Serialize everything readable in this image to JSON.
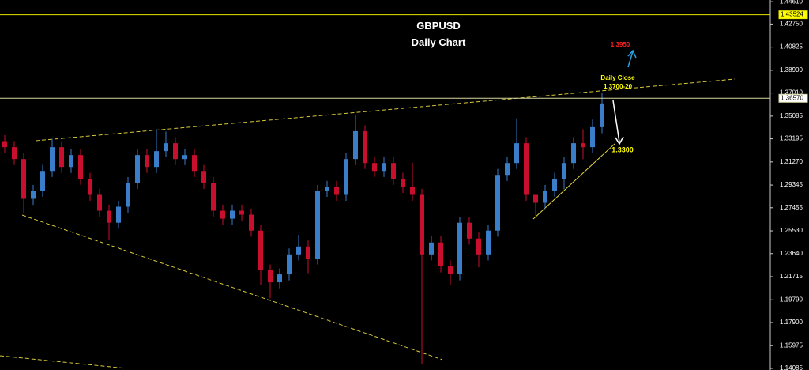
{
  "chart_data": {
    "type": "candlestick",
    "title": "GBPUSD",
    "subtitle": "Daily Chart",
    "up_color": "#3a7dc9",
    "down_color": "#c8102e",
    "ylim": [
      1.1395,
      1.4475
    ],
    "yticks": [
      {
        "value": 1.4461,
        "label": "1.44610"
      },
      {
        "value": 1.4275,
        "label": "1.42750"
      },
      {
        "value": 1.40825,
        "label": "1.40825"
      },
      {
        "value": 1.389,
        "label": "1.38900"
      },
      {
        "value": 1.3701,
        "label": "1.37010"
      },
      {
        "value": 1.35085,
        "label": "1.35085"
      },
      {
        "value": 1.33195,
        "label": "1.33195"
      },
      {
        "value": 1.3127,
        "label": "1.31270"
      },
      {
        "value": 1.29345,
        "label": "1.29345"
      },
      {
        "value": 1.27455,
        "label": "1.27455"
      },
      {
        "value": 1.2553,
        "label": "1.25530"
      },
      {
        "value": 1.2364,
        "label": "1.23640"
      },
      {
        "value": 1.21715,
        "label": "1.21715"
      },
      {
        "value": 1.1979,
        "label": "1.19790"
      },
      {
        "value": 1.179,
        "label": "1.17900"
      },
      {
        "value": 1.15975,
        "label": "1.15975"
      },
      {
        "value": 1.14085,
        "label": "1.14085"
      }
    ],
    "price_lines": [
      {
        "value": 1.43524,
        "label": "1.43524",
        "color": "#e6e600"
      },
      {
        "value": 1.3657,
        "label": "1.36570",
        "color": "#d8d8a0"
      }
    ],
    "annotations": [
      {
        "text": "1.3950",
        "color": "#ff2020"
      },
      {
        "text": "Daily Close",
        "color": "#ffff00"
      },
      {
        "text": "1.3700-20",
        "color": "#ffff00"
      },
      {
        "text": "1.3300",
        "color": "#ffff00"
      }
    ],
    "open": [
      1.33,
      1.325,
      1.3151,
      1.282,
      1.2886,
      1.3052,
      1.325,
      1.3085,
      1.3184,
      1.2986,
      1.2853,
      1.2721,
      1.2621,
      1.2754,
      1.2952,
      1.3184,
      1.3085,
      1.3217,
      1.3283,
      1.3151,
      1.3184,
      1.3052,
      1.2952,
      1.2721,
      1.2655,
      1.2721,
      1.2688,
      1.2555,
      1.2224,
      1.2125,
      1.2191,
      1.2357,
      1.2423,
      1.2323,
      1.2886,
      1.2919,
      1.2853,
      1.3151,
      1.3383,
      1.3118,
      1.3052,
      1.3118,
      1.2986,
      1.2919,
      1.2853,
      1.2357,
      1.2456,
      1.2257,
      1.2191,
      1.2621,
      1.2489,
      1.2357,
      1.2555,
      1.3019,
      1.3118,
      1.3283,
      1.2853,
      1.2787,
      1.2886,
      1.2986,
      1.3118,
      1.3283,
      1.325,
      1.3416
    ],
    "high": [
      1.335,
      1.33,
      1.3201,
      1.2936,
      1.3102,
      1.332,
      1.33,
      1.3234,
      1.3234,
      1.3036,
      1.2903,
      1.2771,
      1.2804,
      1.3002,
      1.3234,
      1.3234,
      1.34,
      1.338,
      1.3333,
      1.3234,
      1.3234,
      1.3102,
      1.3002,
      1.2771,
      1.2771,
      1.2771,
      1.2738,
      1.2605,
      1.2274,
      1.2241,
      1.2407,
      1.252,
      1.2473,
      1.2936,
      1.2969,
      1.2969,
      1.3201,
      1.3515,
      1.3433,
      1.3168,
      1.3168,
      1.3168,
      1.3036,
      1.312,
      1.2903,
      1.2506,
      1.2506,
      1.2307,
      1.2671,
      1.2671,
      1.2539,
      1.2605,
      1.3069,
      1.3168,
      1.349,
      1.3333,
      1.2837,
      1.2936,
      1.3036,
      1.3168,
      1.3333,
      1.34,
      1.348,
      1.37
    ],
    "low": [
      1.32,
      1.3101,
      1.27,
      1.277,
      1.2836,
      1.3002,
      1.3035,
      1.3035,
      1.2936,
      1.2803,
      1.2671,
      1.248,
      1.2571,
      1.2704,
      1.2902,
      1.3035,
      1.3035,
      1.3167,
      1.3101,
      1.3101,
      1.3002,
      1.2902,
      1.2671,
      1.2605,
      1.2605,
      1.2638,
      1.2505,
      1.21,
      1.1993,
      1.2075,
      1.2141,
      1.2307,
      1.22,
      1.2273,
      1.2836,
      1.2803,
      1.2803,
      1.3101,
      1.3068,
      1.3002,
      1.3002,
      1.2936,
      1.2869,
      1.2803,
      1.144,
      1.2307,
      1.2207,
      1.21,
      1.2141,
      1.2439,
      1.225,
      1.2307,
      1.2505,
      1.2969,
      1.3068,
      1.2803,
      1.268,
      1.2737,
      1.2836,
      1.29,
      1.3068,
      1.315,
      1.32,
      1.3366
    ],
    "close": [
      1.325,
      1.3151,
      1.282,
      1.2886,
      1.3052,
      1.325,
      1.3085,
      1.3184,
      1.2986,
      1.2853,
      1.2721,
      1.2621,
      1.2754,
      1.2952,
      1.3184,
      1.3085,
      1.3217,
      1.3283,
      1.3151,
      1.3184,
      1.3052,
      1.2952,
      1.2721,
      1.2655,
      1.2721,
      1.2688,
      1.2555,
      1.2224,
      1.2125,
      1.2191,
      1.2357,
      1.2423,
      1.2323,
      1.2886,
      1.2919,
      1.2853,
      1.3151,
      1.3383,
      1.3118,
      1.3052,
      1.3118,
      1.2986,
      1.2919,
      1.2853,
      1.2357,
      1.2456,
      1.2257,
      1.2191,
      1.2621,
      1.2489,
      1.2357,
      1.2555,
      1.3019,
      1.3118,
      1.3283,
      1.2853,
      1.2787,
      1.2886,
      1.2986,
      1.3118,
      1.3283,
      1.325,
      1.3416,
      1.3614
    ]
  }
}
